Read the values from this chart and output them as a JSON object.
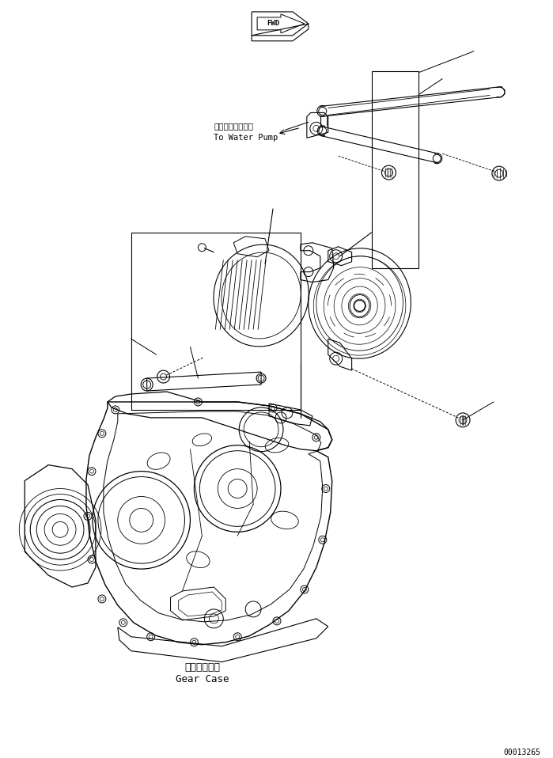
{
  "bg_color": "#ffffff",
  "line_color": "#000000",
  "fig_width": 6.99,
  "fig_height": 9.58,
  "dpi": 100,
  "watermark": "00013265",
  "label_water_pump_jp": "ウォータポンプへ",
  "label_water_pump_en": "To Water Pump",
  "label_gear_case_jp": "ギャーケース",
  "label_gear_case_en": "Gear Case",
  "label_fwd": "FWD"
}
